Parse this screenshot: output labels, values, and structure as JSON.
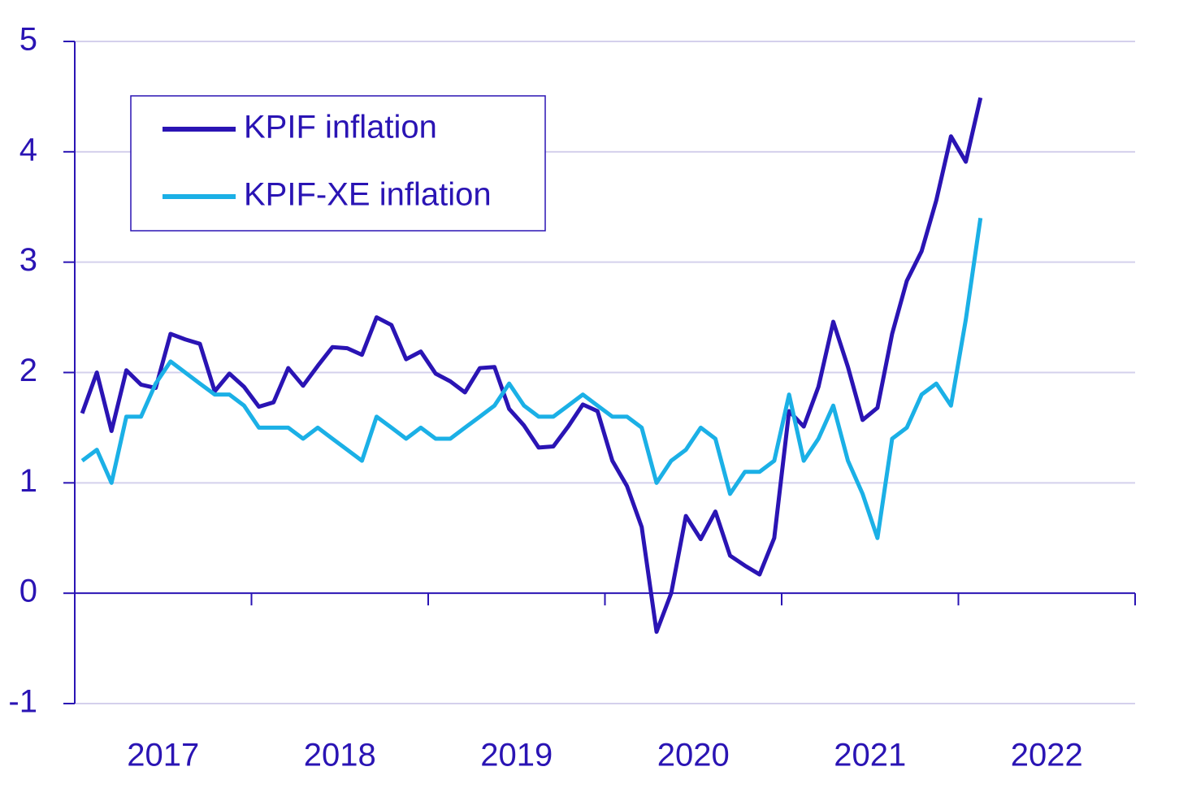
{
  "chart_data": {
    "type": "line",
    "x": [
      2017.042,
      2017.125,
      2017.208,
      2017.292,
      2017.375,
      2017.458,
      2017.542,
      2017.625,
      2017.708,
      2017.792,
      2017.875,
      2017.958,
      2018.042,
      2018.125,
      2018.208,
      2018.292,
      2018.375,
      2018.458,
      2018.542,
      2018.625,
      2018.708,
      2018.792,
      2018.875,
      2018.958,
      2019.042,
      2019.125,
      2019.208,
      2019.292,
      2019.375,
      2019.458,
      2019.542,
      2019.625,
      2019.708,
      2019.792,
      2019.875,
      2019.958,
      2020.042,
      2020.125,
      2020.208,
      2020.292,
      2020.375,
      2020.458,
      2020.542,
      2020.625,
      2020.708,
      2020.792,
      2020.875,
      2020.958,
      2021.042,
      2021.125,
      2021.208,
      2021.292,
      2021.375,
      2021.458,
      2021.542,
      2021.625,
      2021.708,
      2021.792,
      2021.875,
      2021.958,
      2022.042,
      2022.125
    ],
    "series": [
      {
        "name": "KPIF inflation",
        "color": "#2a14b4",
        "values": [
          1.63,
          2.0,
          1.47,
          2.02,
          1.89,
          1.86,
          2.35,
          2.3,
          2.26,
          1.83,
          1.99,
          1.87,
          1.69,
          1.73,
          2.04,
          1.88,
          2.06,
          2.23,
          2.22,
          2.16,
          2.5,
          2.43,
          2.12,
          2.19,
          1.99,
          1.92,
          1.82,
          2.04,
          2.05,
          1.67,
          1.52,
          1.32,
          1.33,
          1.51,
          1.71,
          1.65,
          1.2,
          0.97,
          0.6,
          -0.35,
          0,
          0.7,
          0.49,
          0.74,
          0.34,
          0.25,
          0.17,
          0.5,
          1.65,
          1.51,
          1.87,
          2.46,
          2.05,
          1.57,
          1.68,
          2.35,
          2.83,
          3.1,
          3.56,
          4.14,
          3.91,
          4.49
        ]
      },
      {
        "name": "KPIF-XE inflation",
        "color": "#1bb0e6",
        "values": [
          1.2,
          1.3,
          1.0,
          1.6,
          1.6,
          1.9,
          2.1,
          2.0,
          1.9,
          1.8,
          1.8,
          1.7,
          1.5,
          1.5,
          1.5,
          1.4,
          1.5,
          1.4,
          1.3,
          1.2,
          1.6,
          1.5,
          1.4,
          1.5,
          1.4,
          1.4,
          1.5,
          1.6,
          1.7,
          1.9,
          1.7,
          1.6,
          1.6,
          1.7,
          1.8,
          1.7,
          1.6,
          1.6,
          1.5,
          1.0,
          1.2,
          1.3,
          1.5,
          1.4,
          0.9,
          1.1,
          1.1,
          1.2,
          1.8,
          1.2,
          1.4,
          1.7,
          1.2,
          0.9,
          0.5,
          1.4,
          1.5,
          1.8,
          1.9,
          1.7,
          2.48,
          3.4
        ]
      }
    ],
    "xlim": [
      2017,
      2023
    ],
    "xticks": [
      2018,
      2019,
      2020,
      2021,
      2022,
      2023
    ],
    "year_labels": [
      2017,
      2018,
      2019,
      2020,
      2021,
      2022
    ],
    "ylim": [
      -1,
      5
    ],
    "yticks": [
      -1,
      0,
      1,
      2,
      3,
      4,
      5
    ],
    "grid": true,
    "legend": "upper left"
  }
}
